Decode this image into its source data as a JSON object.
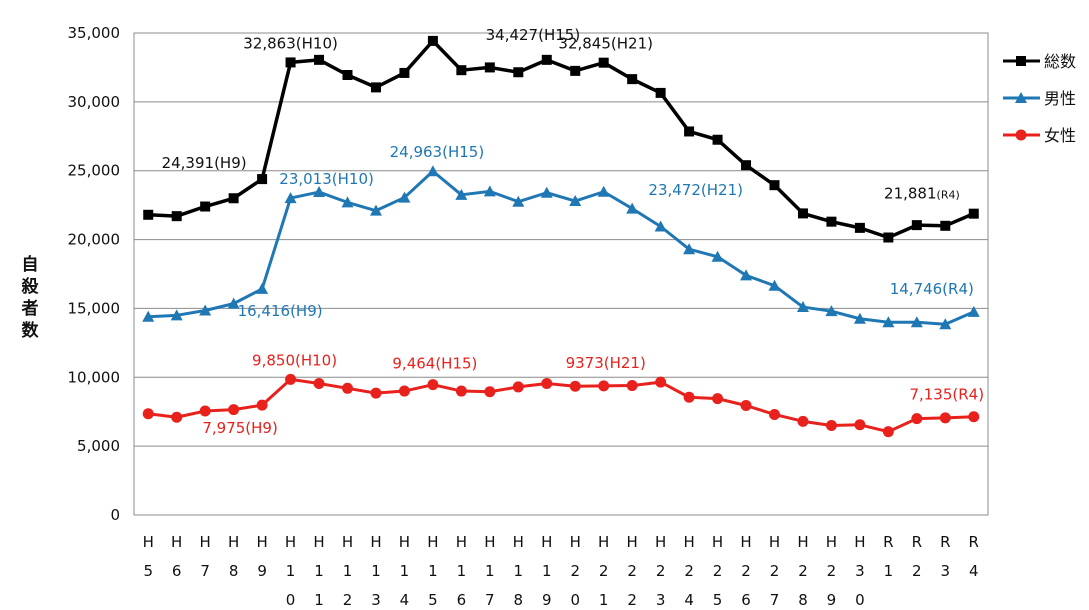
{
  "chart_data": {
    "type": "line",
    "title": "",
    "ylabel": "自殺者数",
    "ylim": [
      0,
      35000
    ],
    "yticks": [
      "0",
      "5,000",
      "10,000",
      "15,000",
      "20,000",
      "25,000",
      "30,000",
      "35,000"
    ],
    "grid": true,
    "legend_position": "right",
    "categories": [
      "H5",
      "H6",
      "H7",
      "H8",
      "H9",
      "H10",
      "H11",
      "H12",
      "H13",
      "H14",
      "H15",
      "H16",
      "H17",
      "H18",
      "H19",
      "H20",
      "H21",
      "H22",
      "H23",
      "H24",
      "H25",
      "H26",
      "H27",
      "H28",
      "H29",
      "H30",
      "R1",
      "R2",
      "R3",
      "R4"
    ],
    "series": [
      {
        "name": "総数",
        "color": "#000000",
        "marker": "square",
        "values": [
          21800,
          21700,
          22400,
          23000,
          24391,
          32863,
          33050,
          31950,
          31050,
          32100,
          34427,
          32300,
          32500,
          32150,
          33050,
          32250,
          32845,
          31650,
          30650,
          27850,
          27250,
          25400,
          23950,
          21900,
          21300,
          20850,
          20150,
          21050,
          21000,
          21881
        ]
      },
      {
        "name": "男性",
        "color": "#1f77b4",
        "marker": "triangle",
        "values": [
          14400,
          14500,
          14850,
          15350,
          16416,
          23013,
          23450,
          22700,
          22100,
          23050,
          24963,
          23250,
          23500,
          22750,
          23400,
          22800,
          23472,
          22250,
          20950,
          19300,
          18750,
          17400,
          16650,
          15100,
          14800,
          14250,
          14000,
          14000,
          13850,
          14746
        ]
      },
      {
        "name": "女性",
        "color": "#e8211d",
        "marker": "circle",
        "values": [
          7350,
          7100,
          7550,
          7650,
          7975,
          9850,
          9550,
          9200,
          8850,
          9000,
          9464,
          9000,
          8950,
          9300,
          9550,
          9350,
          9373,
          9400,
          9650,
          8550,
          8450,
          7950,
          7300,
          6800,
          6500,
          6550,
          6050,
          7000,
          7050,
          7135
        ]
      }
    ],
    "annotations": [
      {
        "text": "24,391(H9)",
        "series": 0,
        "index": 4,
        "color": "#111111"
      },
      {
        "text": "32,863(H10)",
        "series": 0,
        "index": 5,
        "color": "#111111"
      },
      {
        "text": "34,427(H15)",
        "series": 0,
        "index": 10,
        "color": "#111111"
      },
      {
        "text": "32,845(H21)",
        "series": 0,
        "index": 16,
        "color": "#111111"
      },
      {
        "text": "21,881",
        "suffix": "(R4)",
        "series": 0,
        "index": 29,
        "color": "#111111"
      },
      {
        "text": "23,013(H10)",
        "series": 1,
        "index": 5,
        "color": "#1f77b4"
      },
      {
        "text": "24,963(H15)",
        "series": 1,
        "index": 10,
        "color": "#1f77b4"
      },
      {
        "text": "16,416(H9)",
        "series": 1,
        "index": 4,
        "color": "#1f77b4"
      },
      {
        "text": "23,472(H21)",
        "series": 1,
        "index": 16,
        "color": "#1f77b4"
      },
      {
        "text": "14,746(R4)",
        "series": 1,
        "index": 29,
        "color": "#1f77b4"
      },
      {
        "text": "9,850(H10)",
        "series": 2,
        "index": 5,
        "color": "#e8211d"
      },
      {
        "text": "9,464(H15)",
        "series": 2,
        "index": 10,
        "color": "#e8211d"
      },
      {
        "text": "9373(H21)",
        "series": 2,
        "index": 16,
        "color": "#e8211d"
      },
      {
        "text": "7,975(H9)",
        "series": 2,
        "index": 4,
        "color": "#e8211d"
      },
      {
        "text": "7,135(R4)",
        "series": 2,
        "index": 29,
        "color": "#e8211d"
      }
    ]
  }
}
